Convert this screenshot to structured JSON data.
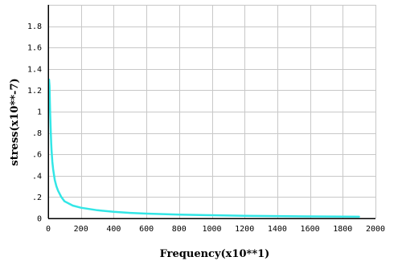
{
  "chart_data": {
    "type": "line",
    "title": "",
    "xlabel": "Frequency(x10**1)",
    "ylabel": "stress(x10**-7)",
    "xlim": [
      0,
      2000
    ],
    "ylim": [
      0,
      2
    ],
    "grid": true,
    "x_ticks": [
      0,
      200,
      400,
      600,
      800,
      1000,
      1200,
      1400,
      1600,
      1800,
      2000
    ],
    "x_tick_labels": [
      "0",
      "200",
      "400",
      "600",
      "800",
      "1000",
      "1200",
      "1400",
      "1600",
      "1800",
      "2000"
    ],
    "y_ticks": [
      0,
      0.2,
      0.4,
      0.6,
      0.8,
      1.0,
      1.2,
      1.4,
      1.6,
      1.8
    ],
    "y_tick_labels": [
      "0",
      ".2",
      ".4",
      ".6",
      ".8",
      "1",
      "1.2",
      "1.4",
      "1.6",
      "1.8"
    ],
    "series": [
      {
        "color": "#33e6e6",
        "x": [
          5,
          8,
          10,
          12,
          15,
          18,
          20,
          25,
          30,
          40,
          50,
          60,
          80,
          100,
          150,
          200,
          300,
          400,
          500,
          600,
          800,
          1000,
          1200,
          1400,
          1600,
          1800,
          1900
        ],
        "y": [
          1.3,
          1.24,
          1.1,
          0.98,
          0.82,
          0.7,
          0.64,
          0.53,
          0.46,
          0.36,
          0.3,
          0.26,
          0.2,
          0.16,
          0.12,
          0.1,
          0.077,
          0.062,
          0.052,
          0.045,
          0.036,
          0.03,
          0.025,
          0.022,
          0.019,
          0.017,
          0.016
        ]
      }
    ]
  }
}
